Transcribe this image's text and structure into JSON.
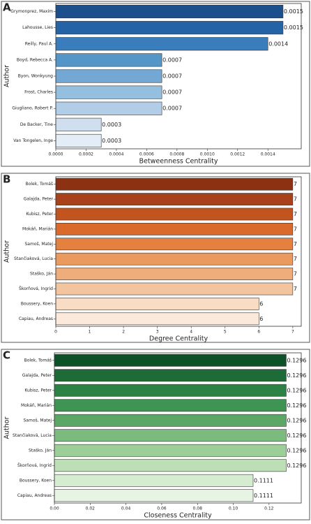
{
  "chart_data": [
    {
      "type": "barh",
      "panel_label": "A",
      "x_label": "Betweenness Centrality",
      "y_label": "Author",
      "categories": [
        "Grymonprez, Maxim",
        "Lahousse, Lies",
        "Reilly, Paul A.",
        "Boyd, Rebecca A.",
        "Byon, Wonkyung",
        "Frost, Charles",
        "Giugliano, Robert P.",
        "De Backer, Tine",
        "Van Tongelen, Inge"
      ],
      "values": [
        0.0015,
        0.0015,
        0.0014,
        0.0007,
        0.0007,
        0.0007,
        0.0007,
        0.0003,
        0.0003
      ],
      "colors": [
        "#1c4f8c",
        "#2463a6",
        "#3a7dbd",
        "#5596c9",
        "#72a8d3",
        "#95bfdf",
        "#b1cde8",
        "#cfdff0",
        "#e3edf7"
      ],
      "xlim": [
        0,
        0.00162
      ],
      "xticks": [
        {
          "value": 0,
          "label": "0.0000"
        },
        {
          "value": 0.0002,
          "label": "0.0002"
        },
        {
          "value": 0.0004,
          "label": "0.0004"
        },
        {
          "value": 0.0006,
          "label": "0.0006"
        },
        {
          "value": 0.0008,
          "label": "0.0008"
        },
        {
          "value": 0.001,
          "label": "0.0010"
        },
        {
          "value": 0.0012,
          "label": "0.0012"
        },
        {
          "value": 0.0014,
          "label": "0.0014"
        }
      ]
    },
    {
      "type": "barh",
      "panel_label": "B",
      "x_label": "Degree Centrality",
      "y_label": "Author",
      "categories": [
        "Bolek, Tomáš",
        "Galajda, Peter",
        "Kubisz, Peter",
        "Mokáň, Marián",
        "Samoš, Matej",
        "Stančiaková, Lucia",
        "Staško, Ján",
        "Škorňová, Ingrid",
        "Boussery, Koen",
        "Capiau, Andreas"
      ],
      "values": [
        7,
        7,
        7,
        7,
        7,
        7,
        7,
        7,
        6,
        6
      ],
      "colors": [
        "#8c3112",
        "#a8421a",
        "#c25420",
        "#d96a2b",
        "#e4813f",
        "#eb9a5e",
        "#efad7b",
        "#f3c59e",
        "#f8dcc3",
        "#fbeadb"
      ],
      "xlim": [
        0,
        7.25
      ],
      "xticks": [
        0,
        1,
        2,
        3,
        4,
        5,
        6,
        7
      ]
    },
    {
      "type": "barh",
      "panel_label": "C",
      "x_label": "Closeness Centrality",
      "y_label": "Author",
      "categories": [
        "Bolek, Tomáš",
        "Galajda, Peter",
        "Kubisz, Peter",
        "Mokáň, Marián",
        "Samoš, Matej",
        "Stančiaková, Lucia",
        "Staško, Ján",
        "Škorňová, Ingrid",
        "Boussery, Koen",
        "Capiau, Andreas"
      ],
      "values": [
        0.1296,
        0.1296,
        0.1296,
        0.1296,
        0.1296,
        0.1296,
        0.1296,
        0.1296,
        0.1111,
        0.1111
      ],
      "colors": [
        "#0d5128",
        "#1d6b36",
        "#2c8145",
        "#3f9454",
        "#5ba866",
        "#7bbb7d",
        "#9cce97",
        "#bcdfb5",
        "#d6ecd0",
        "#e7f4e3"
      ],
      "xlim": [
        0,
        0.138
      ],
      "xticks": [
        {
          "value": 0,
          "label": "0.00"
        },
        {
          "value": 0.02,
          "label": "0.02"
        },
        {
          "value": 0.04,
          "label": "0.04"
        },
        {
          "value": 0.06,
          "label": "0.06"
        },
        {
          "value": 0.08,
          "label": "0.08"
        },
        {
          "value": 0.1,
          "label": "0.10"
        },
        {
          "value": 0.12,
          "label": "0.12"
        }
      ]
    }
  ]
}
